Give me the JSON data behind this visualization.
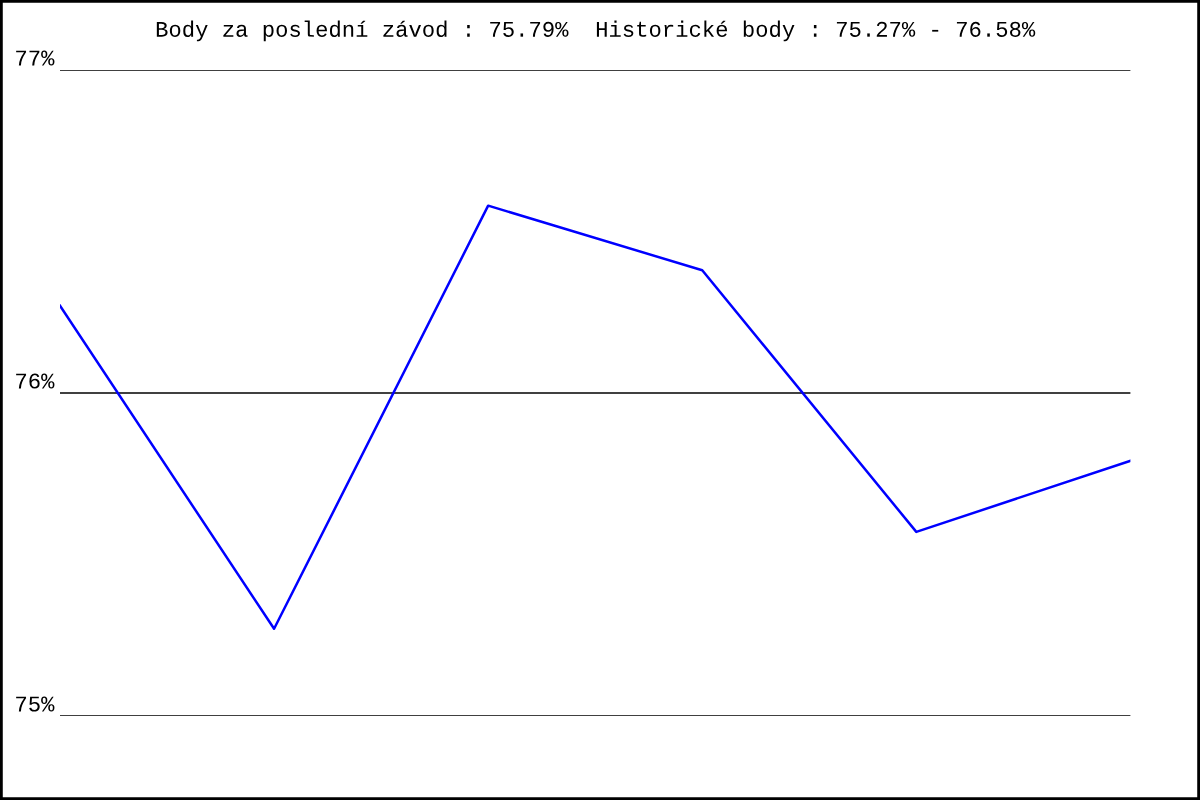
{
  "chart_data": {
    "type": "line",
    "title": "Body za poslední závod : 75.79%  Historické body : 75.27% - 76.58%",
    "categories": [
      null,
      null,
      null,
      null,
      null,
      null
    ],
    "series": [
      {
        "color": "#0000ff",
        "values": [
          76.27,
          75.27,
          76.58,
          76.38,
          75.57,
          75.79
        ]
      }
    ],
    "ylim": [
      75,
      77
    ],
    "yticks": [
      {
        "value": 75,
        "label": "75%"
      },
      {
        "value": 76,
        "label": "76%"
      },
      {
        "value": 77,
        "label": "77%"
      }
    ],
    "grid": "y",
    "marker": "none",
    "line_style": "solid"
  }
}
